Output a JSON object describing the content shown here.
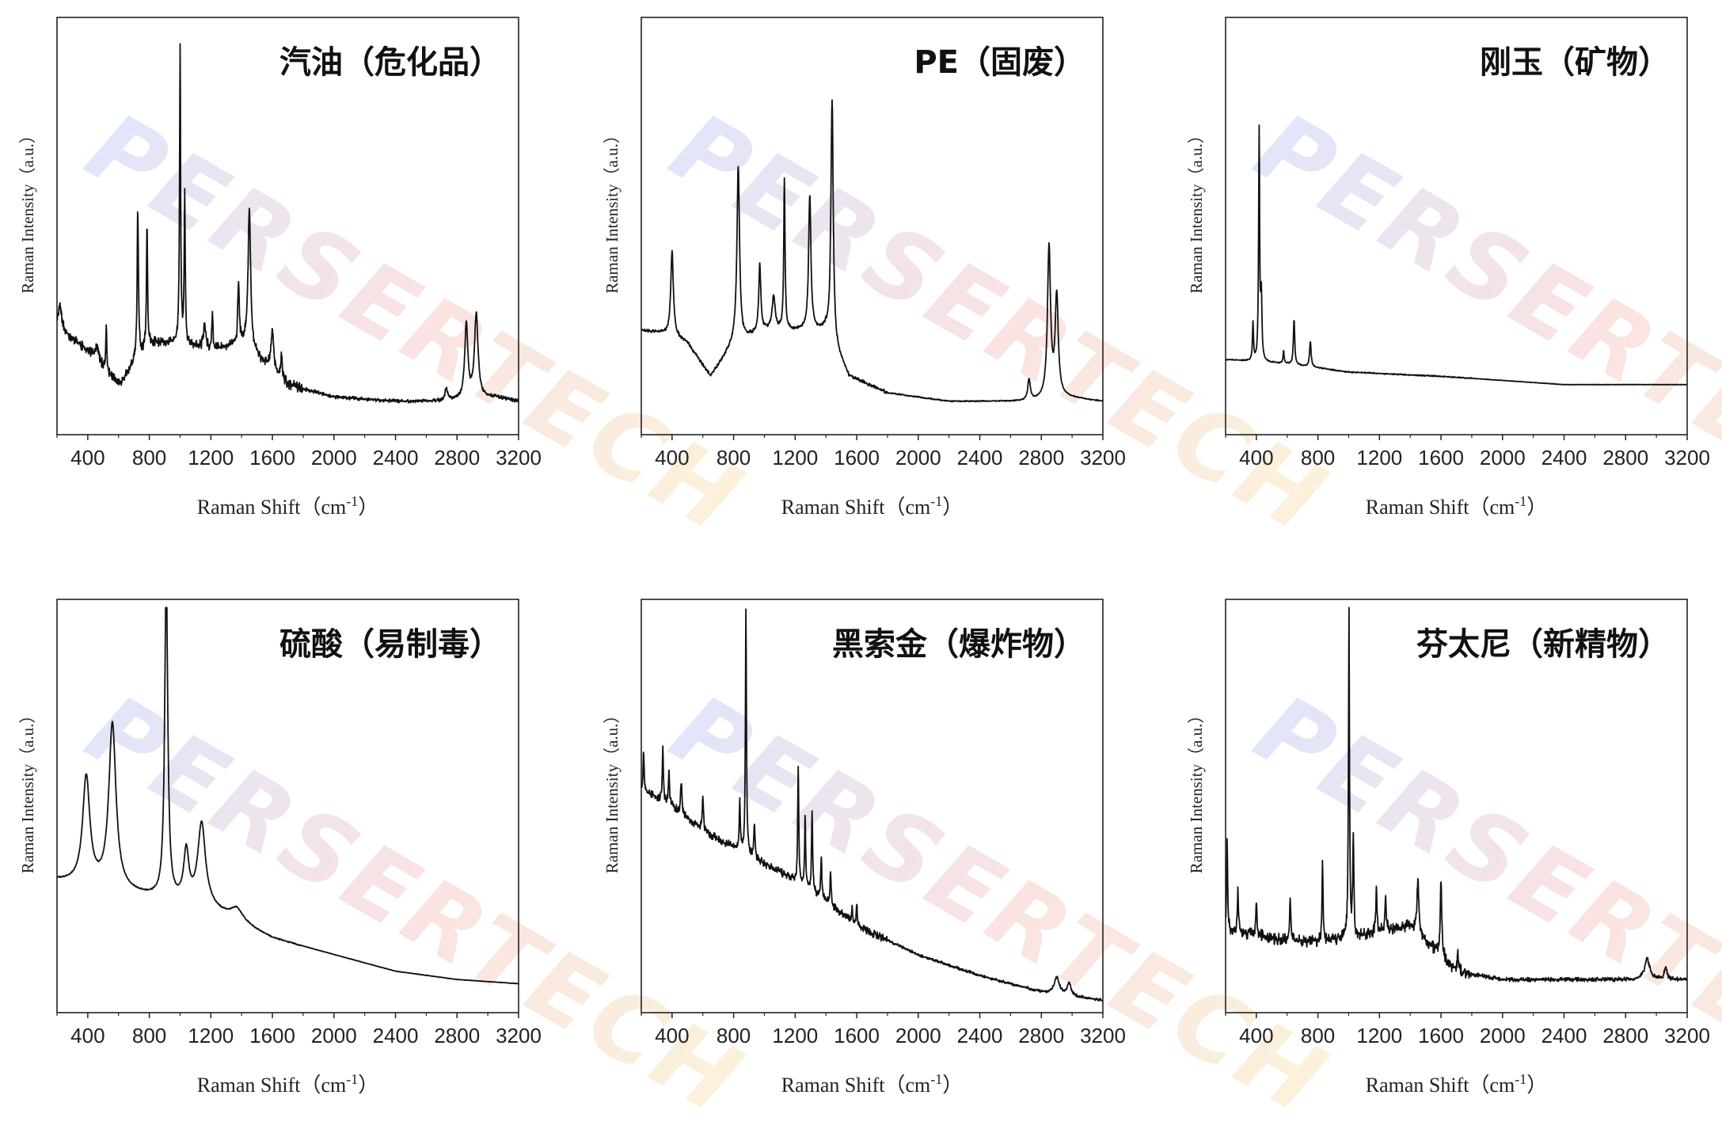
{
  "watermark": "PERSERTECH",
  "axis": {
    "xlabel_prefix": "Raman Shift（cm",
    "xlabel_sup": "-1",
    "xlabel_suffix": "）",
    "ylabel": "Raman Intensity（a.u.）",
    "xticks": [
      400,
      800,
      1200,
      1600,
      2000,
      2400,
      2800,
      3200
    ],
    "tick_labels": [
      "400",
      "800",
      "1200",
      "1600",
      "2000",
      "2400",
      "2800",
      "3200"
    ],
    "xlim": [
      200,
      3200
    ]
  },
  "colors": {
    "line": "#111111",
    "frame": "#222222",
    "watermark_blue": "#aab8f0",
    "watermark_red": "#f2b0b0",
    "watermark_yellow": "#f4dc9a"
  },
  "chart_data": [
    {
      "type": "line",
      "title": "汽油（危化品）",
      "xlabel": "Raman Shift（cm-1）",
      "ylabel": "Raman Intensity（a.u.）",
      "xlim": [
        200,
        3200
      ],
      "ylim": [
        0,
        100
      ],
      "baseline": [
        [
          200,
          26
        ],
        [
          400,
          20
        ],
        [
          600,
          12
        ],
        [
          800,
          22
        ],
        [
          1000,
          22
        ],
        [
          1200,
          20
        ],
        [
          1400,
          22
        ],
        [
          1700,
          12
        ],
        [
          2000,
          9
        ],
        [
          2400,
          8
        ],
        [
          2700,
          8
        ],
        [
          3050,
          9
        ],
        [
          3200,
          8
        ]
      ],
      "peaks": [
        [
          220,
          6,
          12
        ],
        [
          460,
          4,
          14
        ],
        [
          520,
          10,
          4
        ],
        [
          725,
          36,
          5
        ],
        [
          785,
          29,
          4
        ],
        [
          1000,
          72,
          4
        ],
        [
          1030,
          35,
          4
        ],
        [
          1160,
          6,
          10
        ],
        [
          1210,
          9,
          5
        ],
        [
          1380,
          14,
          6
        ],
        [
          1450,
          34,
          10
        ],
        [
          1600,
          10,
          10
        ],
        [
          1660,
          6,
          5
        ],
        [
          2730,
          3,
          10
        ],
        [
          2860,
          18,
          12
        ],
        [
          2925,
          20,
          14
        ]
      ],
      "noise": 2.5,
      "seed": 11
    },
    {
      "type": "line",
      "title": "PE（固废）",
      "xlabel": "Raman Shift（cm-1）",
      "ylabel": "Raman Intensity（a.u.）",
      "xlim": [
        200,
        3200
      ],
      "ylim": [
        0,
        100
      ],
      "baseline": [
        [
          200,
          25
        ],
        [
          400,
          24
        ],
        [
          500,
          22
        ],
        [
          650,
          14
        ],
        [
          800,
          22
        ],
        [
          1000,
          25
        ],
        [
          1200,
          25
        ],
        [
          1400,
          25
        ],
        [
          1550,
          14
        ],
        [
          1800,
          10
        ],
        [
          2200,
          8
        ],
        [
          2700,
          8
        ],
        [
          2950,
          9
        ],
        [
          3200,
          8
        ]
      ],
      "peaks": [
        [
          400,
          20,
          10
        ],
        [
          830,
          42,
          10
        ],
        [
          970,
          16,
          8
        ],
        [
          1060,
          8,
          12
        ],
        [
          1130,
          36,
          5
        ],
        [
          1295,
          32,
          9
        ],
        [
          1440,
          58,
          9
        ],
        [
          2720,
          5,
          10
        ],
        [
          2850,
          36,
          12
        ],
        [
          2900,
          24,
          12
        ]
      ],
      "noise": 0.8,
      "seed": 23
    },
    {
      "type": "line",
      "title": "刚玉（矿物）",
      "xlabel": "Raman Shift（cm-1）",
      "ylabel": "Raman Intensity（a.u.）",
      "xlim": [
        200,
        3200
      ],
      "ylim": [
        0,
        100
      ],
      "baseline": [
        [
          200,
          18
        ],
        [
          600,
          17
        ],
        [
          1000,
          15
        ],
        [
          1600,
          14
        ],
        [
          2400,
          12
        ],
        [
          3200,
          12
        ]
      ],
      "peaks": [
        [
          378,
          9,
          4
        ],
        [
          418,
          55,
          4
        ],
        [
          432,
          15,
          5
        ],
        [
          577,
          3,
          4
        ],
        [
          645,
          11,
          5
        ],
        [
          751,
          6,
          6
        ]
      ],
      "noise": 0.3,
      "seed": 37
    },
    {
      "type": "line",
      "title": "硫酸（易制毒）",
      "xlabel": "Raman Shift（cm-1）",
      "ylabel": "Raman Intensity（a.u.）",
      "xlim": [
        200,
        3200
      ],
      "ylim": [
        0,
        100
      ],
      "baseline": [
        [
          200,
          32
        ],
        [
          500,
          30
        ],
        [
          800,
          28
        ],
        [
          1200,
          25
        ],
        [
          1600,
          18
        ],
        [
          2000,
          14
        ],
        [
          2400,
          10
        ],
        [
          2800,
          8
        ],
        [
          3200,
          7
        ]
      ],
      "peaks": [
        [
          390,
          26,
          28
        ],
        [
          560,
          40,
          28
        ],
        [
          910,
          78,
          12
        ],
        [
          1040,
          12,
          20
        ],
        [
          1140,
          20,
          30
        ],
        [
          1370,
          3,
          50
        ]
      ],
      "noise": 0.3,
      "seed": 41
    },
    {
      "type": "line",
      "title": "黑索金（爆炸物）",
      "xlabel": "Raman Shift（cm-1）",
      "ylabel": "Raman Intensity（a.u.）",
      "xlim": [
        200,
        3200
      ],
      "ylim": [
        0,
        100
      ],
      "baseline": [
        [
          200,
          54
        ],
        [
          400,
          50
        ],
        [
          600,
          44
        ],
        [
          800,
          40
        ],
        [
          1000,
          36
        ],
        [
          1200,
          32
        ],
        [
          1400,
          27
        ],
        [
          1600,
          21
        ],
        [
          2000,
          14
        ],
        [
          2400,
          9
        ],
        [
          2800,
          5
        ],
        [
          3200,
          3
        ]
      ],
      "peaks": [
        [
          215,
          10,
          4
        ],
        [
          340,
          13,
          4
        ],
        [
          380,
          8,
          4
        ],
        [
          460,
          8,
          5
        ],
        [
          600,
          8,
          5
        ],
        [
          840,
          12,
          4
        ],
        [
          880,
          60,
          4
        ],
        [
          935,
          8,
          5
        ],
        [
          1220,
          28,
          4
        ],
        [
          1265,
          17,
          4
        ],
        [
          1310,
          20,
          4
        ],
        [
          1370,
          10,
          4
        ],
        [
          1430,
          8,
          4
        ],
        [
          1570,
          4,
          4
        ],
        [
          1600,
          5,
          4
        ],
        [
          2900,
          4,
          20
        ],
        [
          2980,
          3,
          15
        ]
      ],
      "noise": 2.0,
      "seed": 53
    },
    {
      "type": "line",
      "title": "芬太尼（新精物）",
      "xlabel": "Raman Shift（cm-1）",
      "ylabel": "Raman Intensity（a.u.）",
      "xlim": [
        200,
        3200
      ],
      "ylim": [
        0,
        100
      ],
      "baseline": [
        [
          200,
          20
        ],
        [
          500,
          18
        ],
        [
          800,
          17
        ],
        [
          1000,
          18
        ],
        [
          1400,
          21
        ],
        [
          1700,
          10
        ],
        [
          2000,
          8
        ],
        [
          2400,
          8
        ],
        [
          2800,
          8
        ],
        [
          3200,
          8
        ]
      ],
      "peaks": [
        [
          210,
          22,
          4
        ],
        [
          280,
          10,
          4
        ],
        [
          400,
          8,
          5
        ],
        [
          620,
          10,
          4
        ],
        [
          830,
          20,
          4
        ],
        [
          1002,
          78,
          4
        ],
        [
          1030,
          25,
          4
        ],
        [
          1180,
          10,
          5
        ],
        [
          1240,
          8,
          5
        ],
        [
          1450,
          12,
          8
        ],
        [
          1600,
          18,
          6
        ],
        [
          1710,
          4,
          6
        ],
        [
          2940,
          5,
          20
        ],
        [
          3060,
          3,
          10
        ]
      ],
      "noise": 3.0,
      "seed": 67
    }
  ]
}
